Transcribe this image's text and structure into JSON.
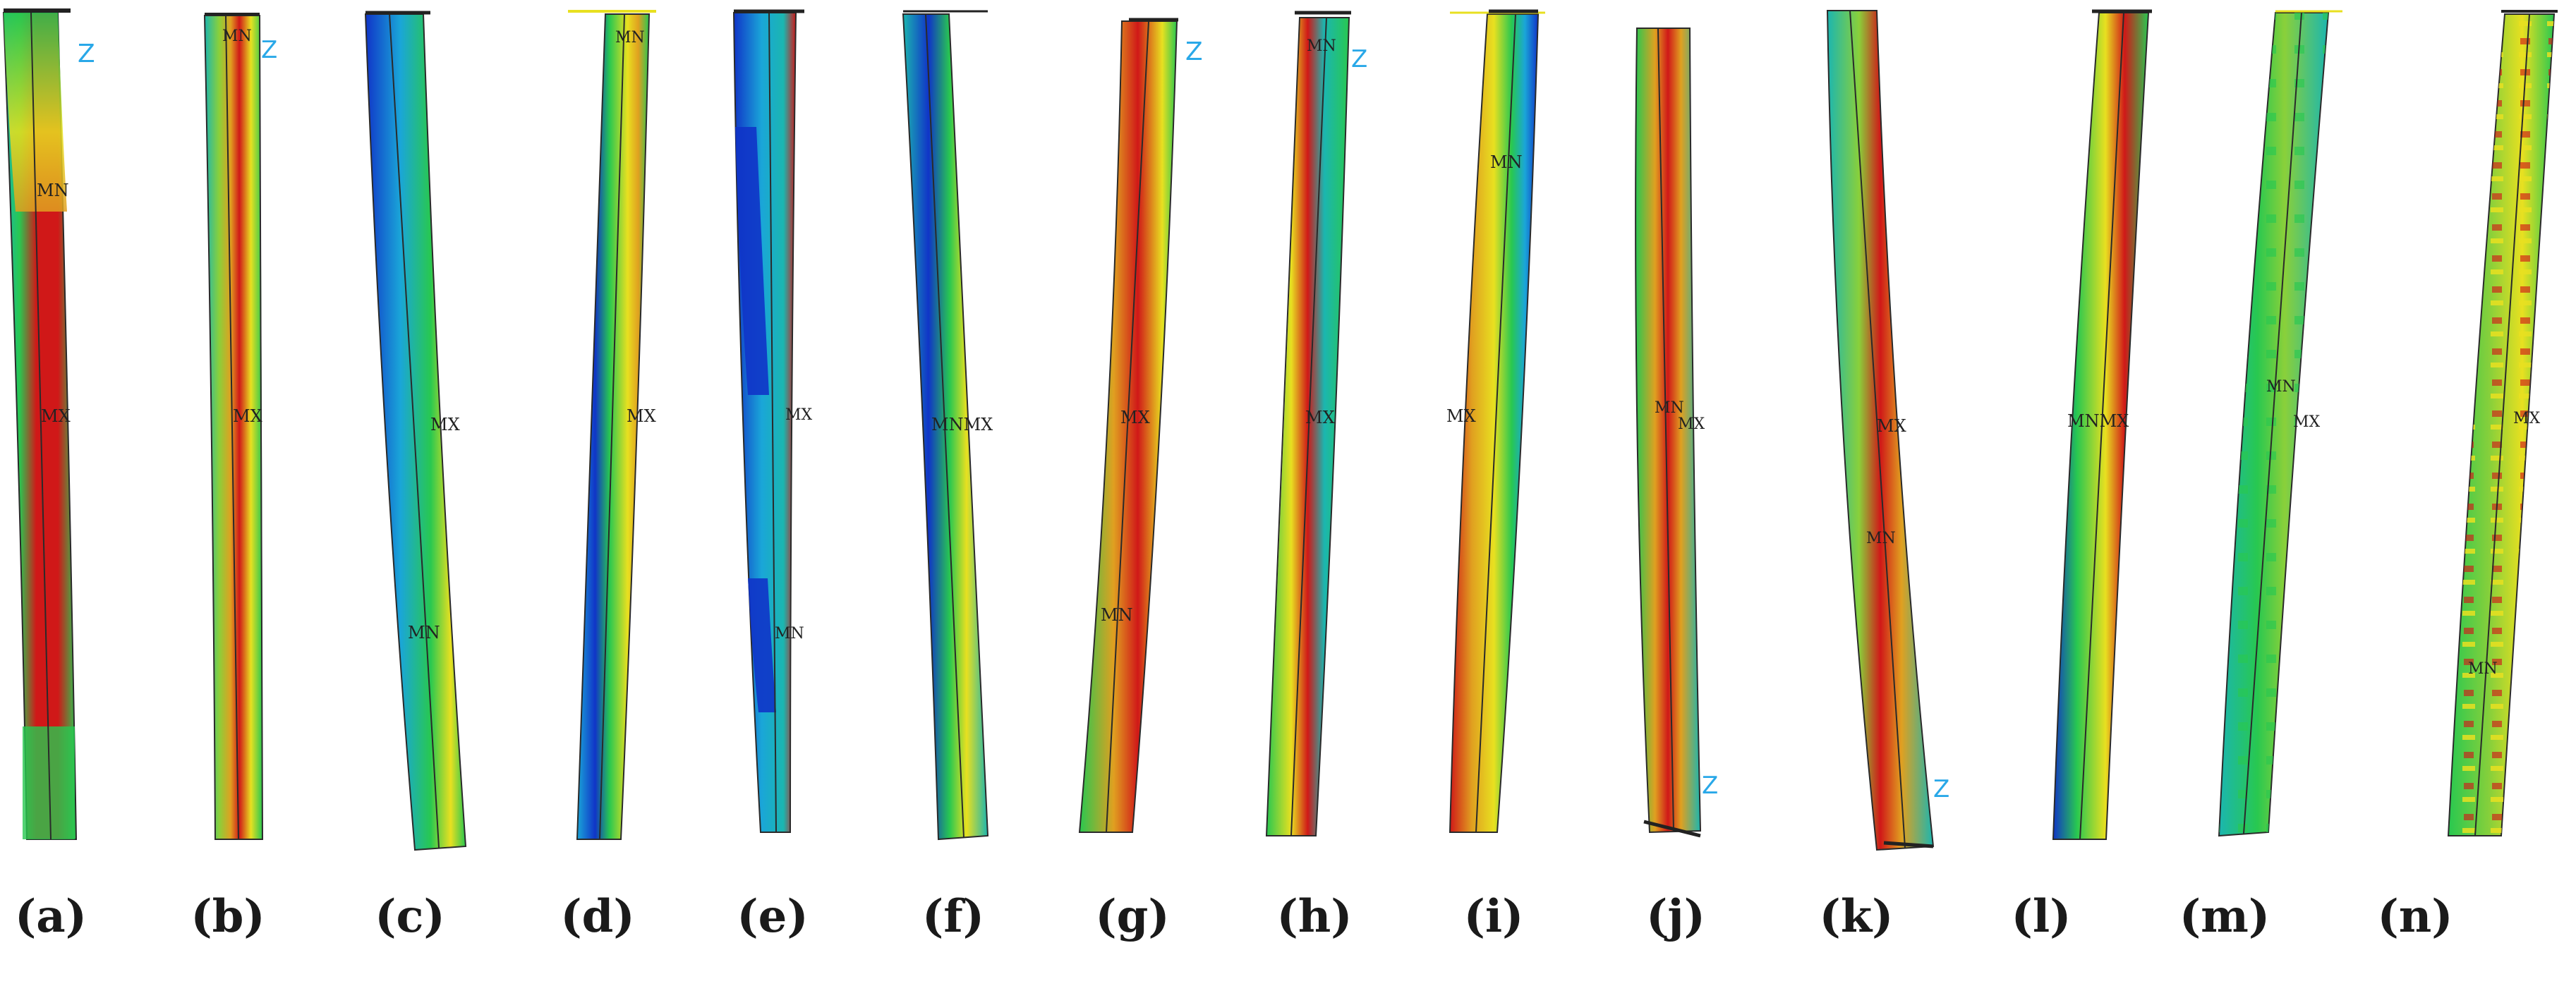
{
  "figure": {
    "panels": [
      {
        "id": "a",
        "label": "(a)",
        "marks": [
          "MN",
          "MX"
        ],
        "axis": "Z"
      },
      {
        "id": "b",
        "label": "(b)",
        "marks": [
          "MN",
          "MX"
        ],
        "axis": "Z"
      },
      {
        "id": "c",
        "label": "(c)",
        "marks": [
          "MX",
          "MN"
        ],
        "axis": ""
      },
      {
        "id": "d",
        "label": "(d)",
        "marks": [
          "MN",
          "MX"
        ],
        "axis": ""
      },
      {
        "id": "e",
        "label": "(e)",
        "marks": [
          "MX",
          "MN"
        ],
        "axis": ""
      },
      {
        "id": "f",
        "label": "(f)",
        "marks": [
          "MNMX"
        ],
        "axis": ""
      },
      {
        "id": "g",
        "label": "(g)",
        "marks": [
          "MX",
          "MN"
        ],
        "axis": "Z"
      },
      {
        "id": "h",
        "label": "(h)",
        "marks": [
          "MN",
          "MX"
        ],
        "axis": "Z"
      },
      {
        "id": "i",
        "label": "(i)",
        "marks": [
          "MN",
          "MX"
        ],
        "axis": ""
      },
      {
        "id": "j",
        "label": "(j)",
        "marks": [
          "MN",
          "MX"
        ],
        "axis": "Z"
      },
      {
        "id": "k",
        "label": "(k)",
        "marks": [
          "MX",
          "MN"
        ],
        "axis": "Z"
      },
      {
        "id": "l",
        "label": "(l)",
        "marks": [
          "MNMX"
        ],
        "axis": ""
      },
      {
        "id": "m",
        "label": "(m)",
        "marks": [
          "MN",
          "MX"
        ],
        "axis": ""
      },
      {
        "id": "n",
        "label": "(n)",
        "marks": [
          "MX",
          "MN"
        ],
        "axis": ""
      }
    ],
    "colors": {
      "background": "#ffffff",
      "blue": "#1034c8",
      "light_blue": "#1aa6d8",
      "cyan": "#1bb6b0",
      "green": "#28c850",
      "light_green": "#8ad03a",
      "yellow": "#e8e020",
      "orange": "#e0a020",
      "red": "#d01818",
      "edge": "#2a2a2a",
      "axis_label": "#29a8e8",
      "marker_text": "#222222"
    }
  }
}
